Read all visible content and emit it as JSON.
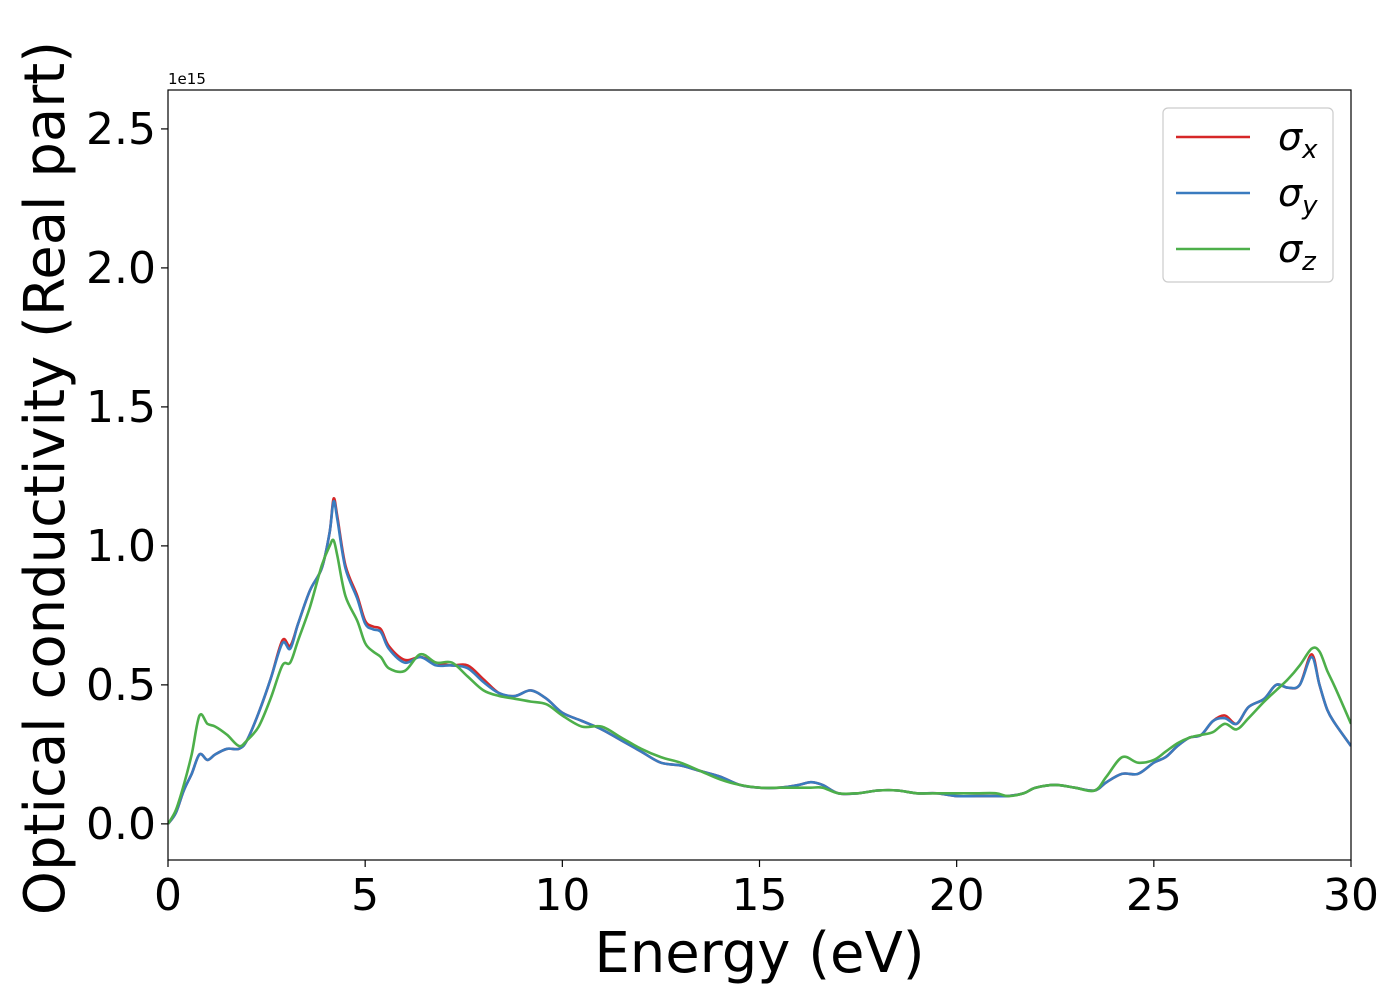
{
  "chart_data": {
    "type": "line",
    "xlabel": "Energy (eV)",
    "ylabel": "Optical conductivity (Real part)",
    "y_offset_label": "1e15",
    "xlim": [
      0,
      30
    ],
    "ylim": [
      -0.13,
      2.64
    ],
    "x_ticks": [
      0,
      5,
      10,
      15,
      20,
      25,
      30
    ],
    "x_tick_labels": [
      "0",
      "5",
      "10",
      "15",
      "20",
      "25",
      "30"
    ],
    "y_ticks": [
      0.0,
      0.5,
      1.0,
      1.5,
      2.0,
      2.5
    ],
    "y_tick_labels": [
      "0.0",
      "0.5",
      "1.0",
      "1.5",
      "2.0",
      "2.5"
    ],
    "grid": false,
    "legend": {
      "position": "top-right",
      "entries": [
        {
          "symbol": "σ",
          "subscript": "x",
          "color": "#d62728"
        },
        {
          "symbol": "σ",
          "subscript": "y",
          "color": "#3a7bbf"
        },
        {
          "symbol": "σ",
          "subscript": "z",
          "color": "#4daf4a"
        }
      ]
    },
    "series": [
      {
        "key": "sigma_x",
        "color": "#d62728",
        "x": [
          0,
          0.2,
          0.4,
          0.6,
          0.8,
          1.0,
          1.2,
          1.5,
          1.8,
          2.0,
          2.3,
          2.6,
          2.9,
          3.1,
          3.3,
          3.6,
          3.9,
          4.1,
          4.2,
          4.3,
          4.5,
          4.8,
          5.0,
          5.2,
          5.4,
          5.6,
          6.0,
          6.4,
          6.8,
          7.2,
          7.6,
          8.0,
          8.4,
          8.8,
          9.2,
          9.6,
          10.0,
          10.5,
          11.0,
          11.5,
          12.0,
          12.5,
          13.0,
          13.5,
          14.0,
          14.5,
          15.0,
          15.5,
          16.0,
          16.3,
          16.6,
          17.0,
          17.5,
          18.0,
          18.5,
          19.0,
          19.5,
          20.0,
          20.5,
          21.0,
          21.3,
          21.7,
          22.0,
          22.5,
          23.0,
          23.5,
          23.8,
          24.2,
          24.6,
          25.0,
          25.3,
          25.6,
          25.9,
          26.2,
          26.5,
          26.8,
          27.1,
          27.4,
          27.8,
          28.1,
          28.4,
          28.7,
          29.0,
          29.2,
          29.4,
          29.6,
          30.0
        ],
        "y": [
          0.0,
          0.04,
          0.12,
          0.18,
          0.25,
          0.23,
          0.25,
          0.27,
          0.27,
          0.3,
          0.4,
          0.52,
          0.66,
          0.64,
          0.72,
          0.84,
          0.92,
          1.05,
          1.17,
          1.1,
          0.93,
          0.82,
          0.73,
          0.71,
          0.7,
          0.64,
          0.59,
          0.6,
          0.58,
          0.57,
          0.57,
          0.52,
          0.47,
          0.46,
          0.48,
          0.45,
          0.4,
          0.37,
          0.34,
          0.3,
          0.26,
          0.22,
          0.21,
          0.19,
          0.17,
          0.14,
          0.13,
          0.13,
          0.14,
          0.15,
          0.14,
          0.11,
          0.11,
          0.12,
          0.12,
          0.11,
          0.11,
          0.1,
          0.1,
          0.1,
          0.1,
          0.11,
          0.13,
          0.14,
          0.13,
          0.12,
          0.15,
          0.18,
          0.18,
          0.22,
          0.24,
          0.28,
          0.31,
          0.32,
          0.37,
          0.39,
          0.36,
          0.42,
          0.45,
          0.5,
          0.49,
          0.5,
          0.61,
          0.5,
          0.41,
          0.36,
          0.28
        ]
      },
      {
        "key": "sigma_y",
        "color": "#3a7bbf",
        "x": [
          0,
          0.2,
          0.4,
          0.6,
          0.8,
          1.0,
          1.2,
          1.5,
          1.8,
          2.0,
          2.3,
          2.6,
          2.9,
          3.1,
          3.3,
          3.6,
          3.9,
          4.1,
          4.2,
          4.3,
          4.5,
          4.8,
          5.0,
          5.2,
          5.4,
          5.6,
          6.0,
          6.4,
          6.8,
          7.2,
          7.6,
          8.0,
          8.4,
          8.8,
          9.2,
          9.6,
          10.0,
          10.5,
          11.0,
          11.5,
          12.0,
          12.5,
          13.0,
          13.5,
          14.0,
          14.5,
          15.0,
          15.5,
          16.0,
          16.3,
          16.6,
          17.0,
          17.5,
          18.0,
          18.5,
          19.0,
          19.5,
          20.0,
          20.5,
          21.0,
          21.3,
          21.7,
          22.0,
          22.5,
          23.0,
          23.5,
          23.8,
          24.2,
          24.6,
          25.0,
          25.3,
          25.6,
          25.9,
          26.2,
          26.5,
          26.8,
          27.1,
          27.4,
          27.8,
          28.1,
          28.4,
          28.7,
          29.0,
          29.2,
          29.4,
          29.6,
          30.0
        ],
        "y": [
          0.0,
          0.04,
          0.12,
          0.18,
          0.25,
          0.23,
          0.25,
          0.27,
          0.27,
          0.3,
          0.4,
          0.52,
          0.65,
          0.63,
          0.72,
          0.84,
          0.92,
          1.05,
          1.16,
          1.09,
          0.92,
          0.81,
          0.72,
          0.7,
          0.69,
          0.63,
          0.58,
          0.6,
          0.57,
          0.57,
          0.56,
          0.51,
          0.47,
          0.46,
          0.48,
          0.45,
          0.4,
          0.37,
          0.34,
          0.3,
          0.26,
          0.22,
          0.21,
          0.19,
          0.17,
          0.14,
          0.13,
          0.13,
          0.14,
          0.15,
          0.14,
          0.11,
          0.11,
          0.12,
          0.12,
          0.11,
          0.11,
          0.1,
          0.1,
          0.1,
          0.1,
          0.11,
          0.13,
          0.14,
          0.13,
          0.12,
          0.15,
          0.18,
          0.18,
          0.22,
          0.24,
          0.28,
          0.31,
          0.32,
          0.37,
          0.38,
          0.36,
          0.42,
          0.45,
          0.5,
          0.49,
          0.5,
          0.6,
          0.5,
          0.41,
          0.36,
          0.28
        ]
      },
      {
        "key": "sigma_z",
        "color": "#4daf4a",
        "x": [
          0,
          0.2,
          0.4,
          0.6,
          0.8,
          1.0,
          1.2,
          1.5,
          1.8,
          2.0,
          2.3,
          2.6,
          2.9,
          3.1,
          3.3,
          3.6,
          3.9,
          4.1,
          4.2,
          4.3,
          4.5,
          4.8,
          5.0,
          5.2,
          5.4,
          5.6,
          6.0,
          6.4,
          6.8,
          7.2,
          7.6,
          8.0,
          8.4,
          8.8,
          9.2,
          9.6,
          10.0,
          10.5,
          11.0,
          11.5,
          12.0,
          12.5,
          13.0,
          13.5,
          14.0,
          14.5,
          15.0,
          15.5,
          16.0,
          16.3,
          16.6,
          17.0,
          17.5,
          18.0,
          18.5,
          19.0,
          19.5,
          20.0,
          20.5,
          21.0,
          21.3,
          21.7,
          22.0,
          22.5,
          23.0,
          23.5,
          23.8,
          24.2,
          24.6,
          25.0,
          25.3,
          25.6,
          25.9,
          26.2,
          26.5,
          26.8,
          27.1,
          27.4,
          27.8,
          28.1,
          28.4,
          28.7,
          29.0,
          29.2,
          29.4,
          29.6,
          30.0
        ],
        "y": [
          0.0,
          0.05,
          0.14,
          0.25,
          0.39,
          0.36,
          0.35,
          0.32,
          0.28,
          0.3,
          0.35,
          0.45,
          0.57,
          0.58,
          0.66,
          0.78,
          0.93,
          1.0,
          1.02,
          0.96,
          0.82,
          0.73,
          0.65,
          0.62,
          0.6,
          0.56,
          0.55,
          0.61,
          0.58,
          0.58,
          0.53,
          0.48,
          0.46,
          0.45,
          0.44,
          0.43,
          0.39,
          0.35,
          0.35,
          0.31,
          0.27,
          0.24,
          0.22,
          0.19,
          0.16,
          0.14,
          0.13,
          0.13,
          0.13,
          0.13,
          0.13,
          0.11,
          0.11,
          0.12,
          0.12,
          0.11,
          0.11,
          0.11,
          0.11,
          0.11,
          0.1,
          0.11,
          0.13,
          0.14,
          0.13,
          0.12,
          0.17,
          0.24,
          0.22,
          0.23,
          0.26,
          0.29,
          0.31,
          0.32,
          0.33,
          0.36,
          0.34,
          0.38,
          0.44,
          0.48,
          0.52,
          0.57,
          0.63,
          0.62,
          0.55,
          0.49,
          0.36
        ]
      }
    ]
  }
}
